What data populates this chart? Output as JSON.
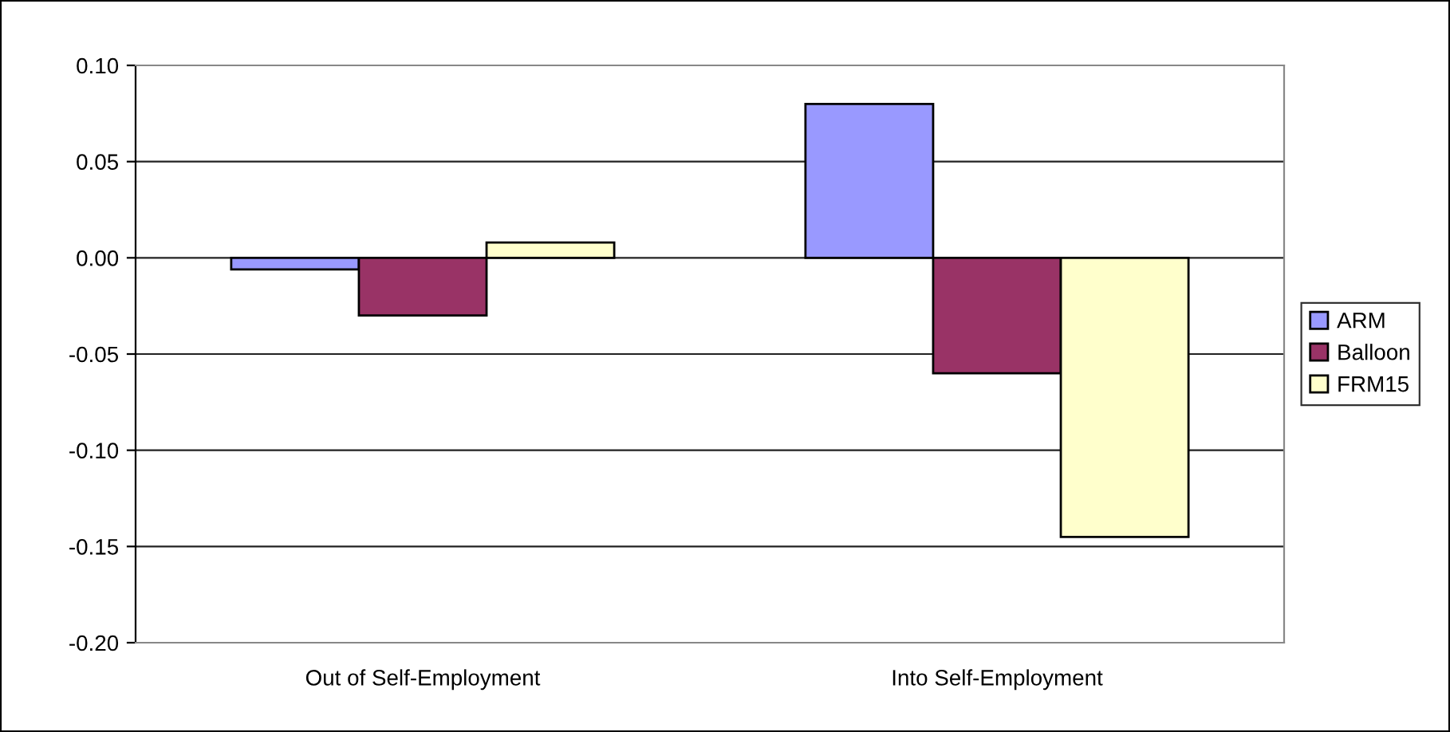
{
  "chart_data": {
    "type": "bar",
    "categories": [
      "Out of Self-Employment",
      "Into Self-Employment"
    ],
    "series": [
      {
        "name": "ARM",
        "color": "#9999ff",
        "values": [
          -0.006,
          0.08
        ]
      },
      {
        "name": "Balloon",
        "color": "#993366",
        "values": [
          -0.03,
          -0.06
        ]
      },
      {
        "name": "FRM15",
        "color": "#ffffcc",
        "values": [
          0.008,
          -0.145
        ]
      }
    ],
    "ylim": [
      -0.2,
      0.1
    ],
    "yticks": [
      {
        "value": -0.2,
        "label": "-0.20"
      },
      {
        "value": -0.15,
        "label": "-0.15"
      },
      {
        "value": -0.1,
        "label": "-0.10"
      },
      {
        "value": -0.05,
        "label": "-0.05"
      },
      {
        "value": 0,
        "label": "0.00"
      },
      {
        "value": 0.05,
        "label": "0.05"
      },
      {
        "value": 0.1,
        "label": "0.10"
      }
    ],
    "grid": "y",
    "legend": "right"
  }
}
